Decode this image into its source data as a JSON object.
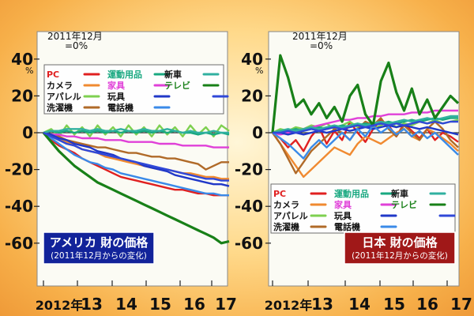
{
  "chart_data": [
    {
      "type": "line",
      "baseline": [
        "2011年12月",
        "=0%"
      ],
      "y_unit": "%",
      "yticks": [
        40,
        20,
        0,
        -20,
        -40,
        -60
      ],
      "xticks": [
        "2012年",
        "13",
        "14",
        "15",
        "16",
        "17"
      ],
      "ylim": [
        -65,
        47
      ],
      "title": "アメリカ 財の価格",
      "subtitle": "(2011年12月からの変化)",
      "legend_position": "top",
      "grid": false,
      "series": [
        {
          "name": "PC",
          "color": "#e02020",
          "values": [
            0,
            -4,
            -7,
            -9,
            -11,
            -14,
            -16,
            -18,
            -20,
            -22,
            -24,
            -25,
            -26,
            -27,
            -28,
            -29,
            -30,
            -31,
            -31,
            -32,
            -33,
            -33,
            -34,
            -34,
            -34
          ]
        },
        {
          "name": "カメラ",
          "color": "#f08a30",
          "values": [
            0,
            -2,
            -4,
            -5,
            -7,
            -9,
            -10,
            -11,
            -13,
            -14,
            -15,
            -16,
            -17,
            -18,
            -19,
            -20,
            -20,
            -21,
            -22,
            -22,
            -23,
            -24,
            -24,
            -25,
            -25
          ]
        },
        {
          "name": "アパレル",
          "color": "#7ed050",
          "values": [
            0,
            2,
            -2,
            4,
            -1,
            3,
            -2,
            4,
            -1,
            3,
            -2,
            4,
            -1,
            3,
            -2,
            4,
            -1,
            3,
            -2,
            4,
            -1,
            3,
            -2,
            4,
            1
          ]
        },
        {
          "name": "洗濯機",
          "color": "#b06a28",
          "values": [
            0,
            -1,
            -2,
            -4,
            -5,
            -6,
            -7,
            -8,
            -8,
            -9,
            -10,
            -11,
            -11,
            -12,
            -13,
            -13,
            -14,
            -14,
            -15,
            -16,
            -17,
            -20,
            -18,
            -16,
            -16
          ]
        },
        {
          "name": "運動用品",
          "color": "#18a880",
          "values": [
            0,
            1,
            0,
            1,
            0,
            1,
            0,
            1,
            0,
            1,
            0,
            1,
            0,
            1,
            0,
            1,
            0,
            1,
            0,
            0,
            -1,
            0,
            -1,
            0,
            -1
          ]
        },
        {
          "name": "家具",
          "color": "#e040d8",
          "values": [
            0,
            -1,
            -1,
            -2,
            -2,
            -3,
            -3,
            -3,
            -4,
            -4,
            -4,
            -5,
            -5,
            -5,
            -5,
            -6,
            -6,
            -6,
            -7,
            -7,
            -7,
            -7,
            -8,
            -8,
            -8
          ]
        },
        {
          "name": "玩具",
          "color": "#2038c8",
          "values": [
            0,
            -1,
            -3,
            -4,
            -6,
            -7,
            -8,
            -10,
            -11,
            -12,
            -14,
            -15,
            -16,
            -18,
            -19,
            -20,
            -21,
            -23,
            -24,
            -25,
            -26,
            -27,
            -28,
            -28,
            -29
          ]
        },
        {
          "name": "電話機",
          "color": "#3a8ae8",
          "values": [
            0,
            -3,
            -6,
            -9,
            -12,
            -14,
            -16,
            -17,
            -19,
            -20,
            -22,
            -23,
            -24,
            -25,
            -26,
            -27,
            -28,
            -29,
            -30,
            -31,
            -32,
            -33,
            -33,
            -34,
            -34
          ]
        },
        {
          "name": "新車",
          "color": "#30b0a0",
          "values": [
            0,
            1,
            1,
            2,
            2,
            2,
            1,
            2,
            1,
            1,
            2,
            1,
            1,
            2,
            1,
            1,
            2,
            1,
            0,
            1,
            0,
            0,
            1,
            0,
            0
          ]
        },
        {
          "name": "テレビ",
          "color": "#188018",
          "values": [
            0,
            -5,
            -10,
            -14,
            -18,
            -21,
            -24,
            -27,
            -29,
            -31,
            -33,
            -35,
            -37,
            -39,
            -41,
            -43,
            -45,
            -47,
            -49,
            -51,
            -53,
            -55,
            -57,
            -60,
            -59
          ]
        },
        {
          "name": "",
          "color": "#3048d8",
          "values": [
            0,
            -2,
            -4,
            -6,
            -7,
            -9,
            -10,
            -11,
            -12,
            -13,
            -14,
            -15,
            -16,
            -17,
            -18,
            -19,
            -20,
            -21,
            -22,
            -23,
            -24,
            -25,
            -25,
            -26,
            -26
          ]
        }
      ]
    },
    {
      "type": "line",
      "baseline": [
        "2011年12月",
        "=0%"
      ],
      "y_unit": "%",
      "yticks": [
        40,
        20,
        0,
        -20,
        -40,
        -60
      ],
      "xticks": [
        "2012年",
        "13",
        "14",
        "15",
        "16",
        "17"
      ],
      "ylim": [
        -65,
        47
      ],
      "title": "日本 財の価格",
      "subtitle": "(2011年12月からの変化)",
      "legend_position": "bottom",
      "grid": false,
      "series": [
        {
          "name": "PC",
          "color": "#e02020",
          "values": [
            0,
            -3,
            -8,
            -4,
            -10,
            -2,
            3,
            -6,
            1,
            -4,
            6,
            0,
            -5,
            2,
            7,
            4,
            -2,
            5,
            1,
            -3,
            2,
            -4,
            0,
            -2,
            -5
          ]
        },
        {
          "name": "カメラ",
          "color": "#f08a30",
          "values": [
            0,
            -6,
            -12,
            -18,
            -24,
            -20,
            -16,
            -12,
            -8,
            -10,
            -12,
            -6,
            -2,
            -4,
            -6,
            -3,
            0,
            2,
            -2,
            -4,
            2,
            0,
            -3,
            -6,
            -10
          ]
        },
        {
          "name": "アパレル",
          "color": "#7ed050",
          "values": [
            0,
            2,
            1,
            3,
            2,
            4,
            3,
            5,
            2,
            4,
            6,
            3,
            5,
            2,
            4,
            6,
            3,
            5,
            4,
            6,
            5,
            7,
            5,
            6,
            7
          ]
        },
        {
          "name": "洗濯機",
          "color": "#b06a28",
          "values": [
            0,
            -6,
            -14,
            -22,
            -16,
            -10,
            -6,
            -2,
            2,
            0,
            -4,
            2,
            6,
            4,
            8,
            2,
            -2,
            4,
            0,
            -4,
            2,
            6,
            2,
            -4,
            -8
          ]
        },
        {
          "name": "運動用品",
          "color": "#18a880",
          "values": [
            0,
            1,
            1,
            2,
            1,
            2,
            3,
            2,
            3,
            4,
            3,
            4,
            5,
            4,
            5,
            6,
            5,
            6,
            7,
            6,
            7,
            8,
            7,
            8,
            8
          ]
        },
        {
          "name": "家具",
          "color": "#e040d8",
          "values": [
            0,
            -1,
            0,
            1,
            2,
            3,
            4,
            5,
            6,
            7,
            7,
            8,
            8,
            9,
            9,
            10,
            10,
            10,
            11,
            11,
            11,
            12,
            12,
            12,
            12
          ]
        },
        {
          "name": "玩具",
          "color": "#2038c8",
          "values": [
            0,
            0,
            -1,
            0,
            -1,
            0,
            1,
            0,
            1,
            2,
            1,
            2,
            3,
            2,
            3,
            4,
            3,
            4,
            3,
            2,
            3,
            2,
            1,
            0,
            -1
          ]
        },
        {
          "name": "電話機",
          "color": "#3a8ae8",
          "values": [
            0,
            -3,
            -6,
            -10,
            -14,
            -8,
            -4,
            -8,
            -4,
            0,
            -4,
            2,
            -2,
            4,
            0,
            3,
            -1,
            2,
            -2,
            1,
            -3,
            0,
            -4,
            -8,
            -12
          ]
        },
        {
          "name": "新車",
          "color": "#30b0a0",
          "values": [
            0,
            1,
            2,
            1,
            2,
            3,
            2,
            3,
            4,
            3,
            4,
            5,
            4,
            5,
            6,
            5,
            6,
            7,
            6,
            7,
            8,
            7,
            8,
            9,
            9
          ]
        },
        {
          "name": "テレビ",
          "color": "#188018",
          "values": [
            0,
            42,
            30,
            14,
            18,
            10,
            16,
            8,
            14,
            6,
            20,
            26,
            10,
            4,
            28,
            38,
            22,
            12,
            24,
            10,
            18,
            8,
            14,
            20,
            16
          ]
        },
        {
          "name": "",
          "color": "#3048d8",
          "values": [
            0,
            0,
            1,
            0,
            1,
            2,
            1,
            2,
            3,
            2,
            3,
            4,
            3,
            4,
            5,
            4,
            5,
            4,
            5,
            6,
            5,
            6,
            5,
            6,
            6
          ]
        }
      ]
    }
  ]
}
